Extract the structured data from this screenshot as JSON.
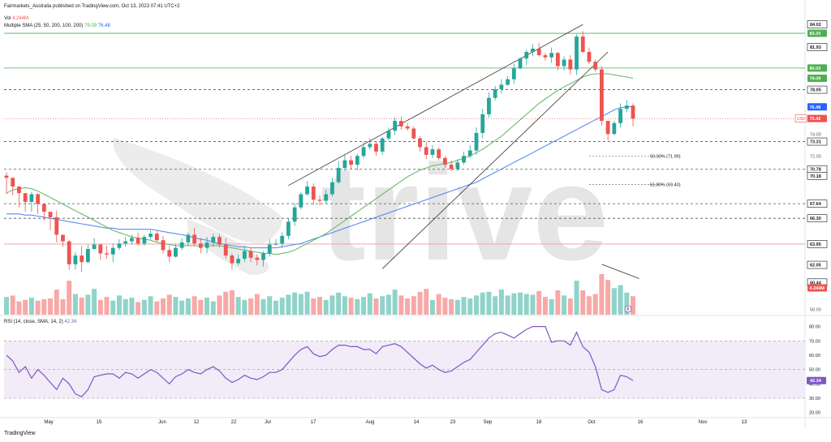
{
  "header": {
    "publisher_line": "Fairmarkets_Australia published on TradingView.com, Oct 13, 2023 07:41 UTC+2",
    "vol_label": "Vol",
    "vol_value": "4.244M",
    "sma_label": "Multiple SMA (25, 50, 200, 100, 200)",
    "sma_value_1": "79.09",
    "sma_value_2": "76.48",
    "rsi_label": "RSI (14, close, SMA, 14, 2)",
    "rsi_value": "42.34"
  },
  "watermark": "trive",
  "footer": {
    "logo_text": "TradingView"
  },
  "colors": {
    "up": "#26a69a",
    "down": "#ef5350",
    "vol_up": "#8fd3c9",
    "vol_down": "#f7a9a7",
    "sma_fast": "#66bb6a",
    "sma_slow": "#5b8def",
    "rsi_line": "#7e57c2",
    "rsi_band": "#ede7f6",
    "resistance": "#4caf50",
    "support": "#ef9a9a",
    "price_tag": "#ef5350",
    "sma_tag_green": "#4caf50",
    "sma_tag_blue": "#2962ff"
  },
  "chart_data": {
    "type": "candlestick",
    "x_tick_labels": [
      "May",
      "15",
      "Jun",
      "12",
      "22",
      "Jul",
      "17",
      "Aug",
      "14",
      "23",
      "Sep",
      "18",
      "Oct",
      "16",
      "Nov",
      "13"
    ],
    "price_axis_labels": [
      "84.02",
      "81.93",
      "78.05",
      "74.00",
      "72.00",
      "73.31",
      "70.78",
      "70.18",
      "67.64",
      "66.30",
      "63.95",
      "62.05",
      "60.44",
      "58.00"
    ],
    "price_tags": [
      {
        "text": "83.20",
        "kind": "level-green"
      },
      {
        "text": "80.03",
        "kind": "level-green"
      },
      {
        "text": "79.09",
        "kind": "sma-green"
      },
      {
        "text": "76.48",
        "kind": "sma-blue"
      },
      {
        "text": "75.42",
        "kind": "last-price"
      },
      {
        "text": "4.244M",
        "kind": "volume"
      }
    ],
    "currency": "USD",
    "ylim": [
      57.5,
      85.5
    ],
    "annotations": [
      {
        "text": "50.00% (71.99)",
        "value": 71.99
      },
      {
        "text": "61.80% (69.40)",
        "value": 69.4
      }
    ],
    "horizontal_levels": [
      {
        "value": 83.2,
        "style": "solid-green"
      },
      {
        "value": 80.03,
        "style": "solid-green"
      },
      {
        "value": 78.05,
        "style": "dashed"
      },
      {
        "value": 73.31,
        "style": "dashed"
      },
      {
        "value": 70.78,
        "style": "dashed"
      },
      {
        "value": 67.64,
        "style": "dashed"
      },
      {
        "value": 66.3,
        "style": "dashed"
      },
      {
        "value": 63.95,
        "style": "solid-red"
      }
    ],
    "closes": [
      70.0,
      69.2,
      68.6,
      67.8,
      68.5,
      67.6,
      66.9,
      66.4,
      64.8,
      64.2,
      62.1,
      62.9,
      62.3,
      63.5,
      63.9,
      63.1,
      63.0,
      63.6,
      64.0,
      64.2,
      64.5,
      64.0,
      64.6,
      64.9,
      64.3,
      63.4,
      62.8,
      63.6,
      64.1,
      64.8,
      64.0,
      63.6,
      64.1,
      64.6,
      63.9,
      62.9,
      62.2,
      62.6,
      63.3,
      62.7,
      62.5,
      63.1,
      63.9,
      64.0,
      64.7,
      66.0,
      67.3,
      68.5,
      69.2,
      68.0,
      67.9,
      68.5,
      69.6,
      70.9,
      71.6,
      71.2,
      72.0,
      72.8,
      73.1,
      72.4,
      73.6,
      74.3,
      75.2,
      74.7,
      74.5,
      73.6,
      72.8,
      72.1,
      72.6,
      71.8,
      71.2,
      70.8,
      71.4,
      72.0,
      72.5,
      74.1,
      75.8,
      77.3,
      78.1,
      78.5,
      79.0,
      80.0,
      80.9,
      81.5,
      81.8,
      81.2,
      81.0,
      81.4,
      80.2,
      80.8,
      79.9,
      82.9,
      81.5,
      80.6,
      79.9,
      75.2,
      74.0,
      75.0,
      76.3,
      76.6,
      75.4
    ],
    "ranges": [
      [
        68.5,
        70.5
      ],
      [
        68.4,
        69.9
      ],
      [
        67.3,
        68.7
      ],
      [
        66.9,
        68.5
      ],
      [
        66.9,
        68.7
      ],
      [
        66.7,
        68.6
      ],
      [
        66.1,
        67.5
      ],
      [
        65.2,
        66.7
      ],
      [
        64.1,
        67.0
      ],
      [
        63.7,
        64.8
      ],
      [
        61.6,
        64.3
      ],
      [
        61.6,
        63.2
      ],
      [
        61.4,
        63.8
      ],
      [
        62.2,
        63.9
      ],
      [
        63.4,
        64.5
      ],
      [
        62.5,
        64.0
      ],
      [
        62.6,
        63.8
      ],
      [
        62.3,
        64.0
      ],
      [
        63.4,
        64.4
      ],
      [
        63.7,
        64.6
      ],
      [
        63.9,
        64.8
      ],
      [
        63.8,
        65.0
      ],
      [
        63.8,
        64.8
      ],
      [
        64.4,
        65.2
      ],
      [
        64.1,
        65.2
      ],
      [
        63.1,
        64.7
      ],
      [
        62.3,
        63.8
      ],
      [
        62.7,
        64.0
      ],
      [
        63.4,
        64.5
      ],
      [
        63.8,
        65.0
      ],
      [
        63.8,
        65.4
      ],
      [
        63.1,
        64.5
      ],
      [
        63.1,
        64.6
      ],
      [
        63.7,
        64.9
      ],
      [
        63.6,
        64.9
      ],
      [
        62.6,
        64.5
      ],
      [
        61.6,
        63.1
      ],
      [
        62.0,
        63.0
      ],
      [
        62.3,
        63.8
      ],
      [
        62.3,
        63.6
      ],
      [
        62.0,
        63.0
      ],
      [
        61.9,
        63.3
      ],
      [
        62.8,
        64.4
      ],
      [
        63.8,
        64.4
      ],
      [
        63.6,
        65.0
      ],
      [
        64.4,
        66.3
      ],
      [
        65.6,
        67.7
      ],
      [
        67.1,
        68.7
      ],
      [
        68.4,
        69.7
      ],
      [
        67.5,
        69.5
      ],
      [
        67.5,
        68.4
      ],
      [
        67.6,
        68.9
      ],
      [
        68.3,
        70.0
      ],
      [
        69.4,
        71.5
      ],
      [
        70.6,
        72.2
      ],
      [
        70.8,
        72.0
      ],
      [
        70.7,
        72.2
      ],
      [
        71.8,
        73.3
      ],
      [
        72.6,
        73.6
      ],
      [
        72.0,
        73.3
      ],
      [
        72.1,
        73.7
      ],
      [
        73.4,
        74.6
      ],
      [
        73.9,
        75.5
      ],
      [
        74.4,
        75.6
      ],
      [
        74.3,
        75.0
      ],
      [
        73.5,
        74.7
      ],
      [
        72.4,
        73.8
      ],
      [
        71.7,
        73.3
      ],
      [
        71.8,
        73.0
      ],
      [
        71.6,
        72.8
      ],
      [
        70.9,
        72.0
      ],
      [
        70.6,
        71.6
      ],
      [
        70.6,
        71.7
      ],
      [
        71.2,
        72.4
      ],
      [
        71.8,
        73.0
      ],
      [
        72.1,
        74.6
      ],
      [
        73.6,
        76.3
      ],
      [
        75.5,
        77.8
      ],
      [
        77.1,
        78.4
      ],
      [
        77.7,
        79.0
      ],
      [
        78.4,
        79.3
      ],
      [
        78.6,
        80.4
      ],
      [
        79.9,
        81.0
      ],
      [
        80.3,
        81.7
      ],
      [
        81.1,
        82.2
      ],
      [
        81.1,
        82.3
      ],
      [
        80.7,
        81.4
      ],
      [
        80.5,
        81.9
      ],
      [
        79.8,
        81.5
      ],
      [
        79.8,
        81.1
      ],
      [
        79.4,
        81.2
      ],
      [
        79.4,
        83.1
      ],
      [
        81.4,
        83.4
      ],
      [
        80.4,
        81.9
      ],
      [
        79.7,
        80.8
      ],
      [
        74.8,
        80.2
      ],
      [
        73.4,
        74.5
      ],
      [
        73.9,
        75.2
      ],
      [
        74.6,
        76.8
      ],
      [
        76.0,
        77.1
      ],
      [
        74.7,
        76.8
      ]
    ],
    "volumes": [
      2.4,
      2.6,
      1.8,
      2.0,
      2.3,
      1.9,
      2.1,
      2.2,
      3.4,
      2.1,
      4.6,
      2.8,
      2.3,
      2.7,
      3.5,
      2.0,
      2.4,
      1.9,
      2.6,
      2.1,
      2.3,
      1.7,
      2.0,
      2.5,
      1.8,
      2.2,
      2.7,
      2.4,
      1.9,
      2.2,
      2.5,
      2.0,
      2.3,
      1.8,
      2.6,
      3.1,
      3.3,
      2.4,
      2.0,
      2.2,
      2.8,
      2.1,
      2.5,
      1.9,
      2.3,
      2.7,
      3.0,
      2.8,
      3.1,
      2.2,
      2.4,
      2.0,
      2.6,
      3.0,
      2.5,
      2.3,
      2.1,
      2.4,
      2.9,
      2.2,
      2.5,
      2.7,
      3.4,
      2.6,
      2.2,
      2.5,
      3.1,
      3.5,
      2.0,
      2.8,
      2.3,
      2.1,
      2.0,
      2.4,
      2.2,
      2.6,
      3.0,
      3.1,
      2.5,
      3.4,
      2.6,
      2.9,
      3.0,
      2.8,
      2.7,
      3.2,
      2.4,
      2.1,
      3.3,
      2.6,
      2.2,
      4.6,
      3.3,
      2.5,
      2.8,
      5.5,
      4.7,
      3.6,
      4.0,
      3.0,
      2.5
    ],
    "sma_fast": [
      68.6,
      68.9,
      69.0,
      69.1,
      69.0,
      68.8,
      68.5,
      68.2,
      67.9,
      67.6,
      67.3,
      67.0,
      66.7,
      66.4,
      66.1,
      65.8,
      65.5,
      65.2,
      65.0,
      64.8,
      64.6,
      64.5,
      64.4,
      64.3,
      64.1,
      64.0,
      63.9,
      63.8,
      63.8,
      63.8,
      63.8,
      63.8,
      63.8,
      63.8,
      63.8,
      63.7,
      63.6,
      63.5,
      63.4,
      63.3,
      63.2,
      63.1,
      63.1,
      63.0,
      63.1,
      63.2,
      63.4,
      63.7,
      64.0,
      64.3,
      64.6,
      64.9,
      65.3,
      65.7,
      66.1,
      66.5,
      66.9,
      67.3,
      67.7,
      68.1,
      68.5,
      68.9,
      69.3,
      69.7,
      70.1,
      70.4,
      70.7,
      70.9,
      71.1,
      71.2,
      71.3,
      71.4,
      71.6,
      71.8,
      72.0,
      72.3,
      72.6,
      73.0,
      73.4,
      73.8,
      74.3,
      74.8,
      75.3,
      75.8,
      76.3,
      76.8,
      77.2,
      77.6,
      78.0,
      78.3,
      78.6,
      78.9,
      79.2,
      79.4,
      79.5,
      79.5,
      79.5,
      79.4,
      79.3,
      79.2,
      79.09
    ],
    "sma_slow": [
      66.7,
      66.7,
      66.7,
      66.6,
      66.6,
      66.5,
      66.4,
      66.3,
      66.2,
      66.1,
      66.0,
      65.9,
      65.8,
      65.7,
      65.6,
      65.5,
      65.4,
      65.4,
      65.3,
      65.3,
      65.3,
      65.3,
      65.3,
      65.3,
      65.2,
      65.1,
      65.0,
      64.9,
      64.8,
      64.7,
      64.5,
      64.4,
      64.3,
      64.1,
      64.0,
      63.9,
      63.8,
      63.7,
      63.7,
      63.6,
      63.6,
      63.6,
      63.6,
      63.6,
      63.7,
      63.8,
      63.9,
      64.0,
      64.2,
      64.4,
      64.6,
      64.8,
      65.0,
      65.2,
      65.4,
      65.6,
      65.8,
      66.0,
      66.2,
      66.4,
      66.6,
      66.8,
      67.0,
      67.2,
      67.4,
      67.6,
      67.8,
      68.0,
      68.2,
      68.4,
      68.6,
      68.8,
      69.0,
      69.2,
      69.4,
      69.6,
      69.9,
      70.2,
      70.5,
      70.8,
      71.1,
      71.4,
      71.7,
      72.0,
      72.3,
      72.6,
      72.9,
      73.2,
      73.5,
      73.8,
      74.1,
      74.4,
      74.7,
      75.0,
      75.3,
      75.6,
      75.9,
      76.2,
      76.4,
      76.5,
      76.48
    ],
    "rsi": {
      "label": "RSI (14, close, SMA, 14, 2)",
      "axis_labels": [
        "80.00",
        "70.00",
        "60.00",
        "50.00",
        "40.00",
        "30.00",
        "20.00"
      ],
      "band": [
        30,
        70
      ],
      "ylim": [
        17,
        86
      ],
      "values": [
        60.0,
        56.0,
        48.0,
        52.0,
        44.0,
        50.0,
        46.0,
        41.0,
        36.0,
        44.0,
        40.0,
        33.0,
        31.0,
        36.0,
        45.0,
        46.0,
        47.0,
        47.0,
        44.0,
        48.0,
        47.0,
        44.0,
        47.0,
        50.0,
        48.0,
        44.0,
        40.0,
        45.0,
        47.0,
        50.0,
        48.0,
        47.0,
        50.0,
        52.0,
        49.0,
        44.0,
        41.0,
        43.0,
        46.0,
        44.0,
        43.0,
        45.0,
        48.0,
        48.0,
        50.0,
        55.0,
        60.0,
        64.0,
        66.0,
        61.0,
        59.0,
        60.0,
        64.0,
        67.0,
        67.0,
        66.0,
        66.0,
        64.0,
        64.0,
        61.0,
        66.0,
        67.0,
        68.0,
        66.0,
        62.0,
        58.0,
        54.0,
        51.0,
        53.0,
        50.0,
        48.0,
        49.0,
        52.0,
        55.0,
        57.0,
        62.0,
        67.0,
        72.0,
        75.0,
        76.0,
        74.0,
        72.0,
        75.0,
        78.0,
        80.0,
        80.0,
        80.0,
        69.0,
        70.0,
        70.0,
        67.0,
        76.0,
        66.0,
        62.0,
        52.0,
        36.0,
        34.0,
        36.0,
        46.0,
        45.0,
        42.34
      ]
    }
  }
}
